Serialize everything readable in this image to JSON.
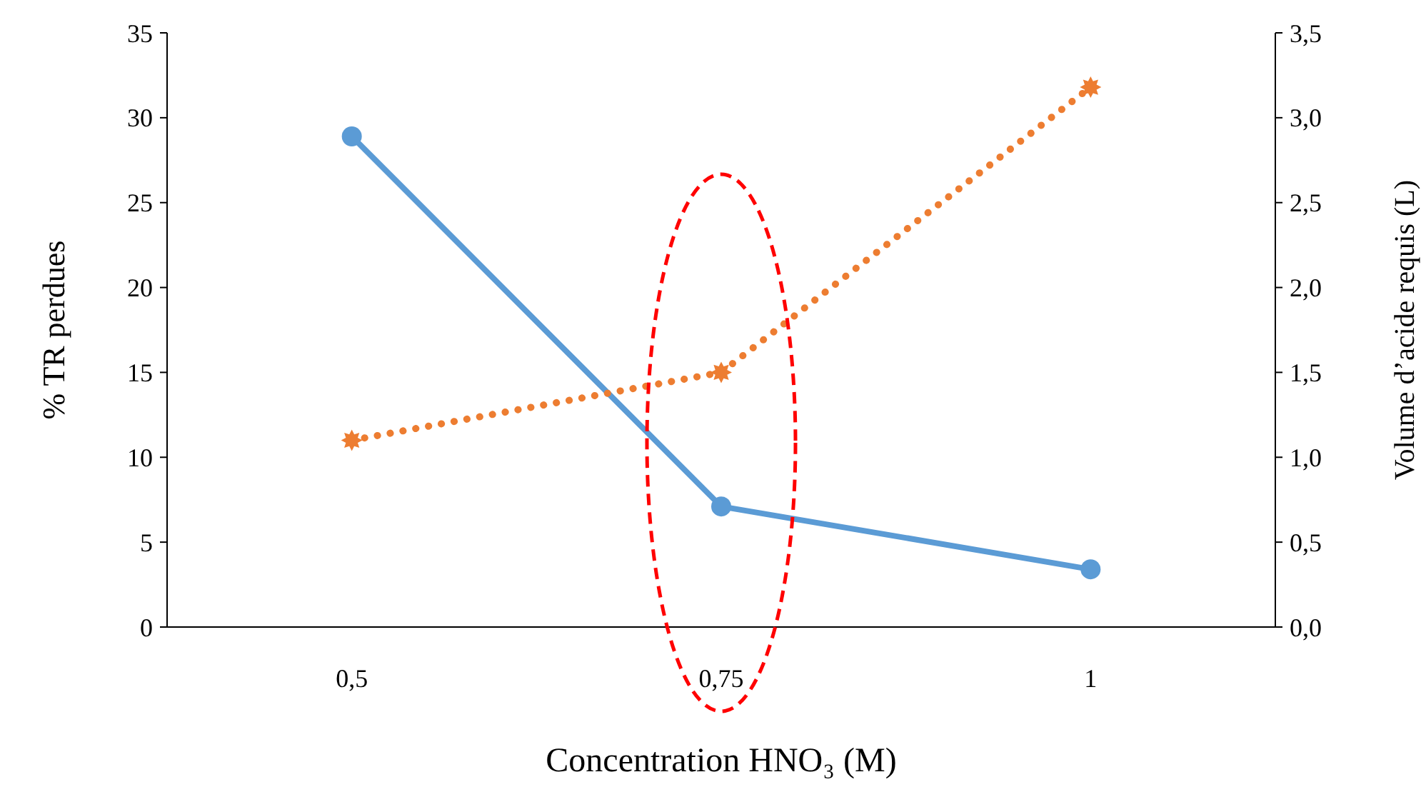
{
  "chart_data": {
    "type": "line",
    "xlabel": "Concentration HNO₃ (M)",
    "ylabel": "% TR perdues",
    "y2label": "Volume d’acide requis (L)",
    "categories": [
      "0,5",
      "0,75",
      "1"
    ],
    "series": [
      {
        "color": "#5b9bd5",
        "values": [
          28.9,
          7.1,
          3.4
        ],
        "marker": "circle",
        "line_style": "solid"
      },
      {
        "color": "#ed7d31",
        "values": [
          1.1,
          1.5,
          3.18
        ],
        "axis": "y2",
        "marker": "star",
        "line_style": "dotted"
      }
    ],
    "ylim": [
      0,
      35
    ],
    "yticks": [
      0,
      5,
      10,
      15,
      20,
      25,
      30,
      35
    ],
    "y2lim": [
      0,
      3.5
    ],
    "y2ticks": [
      {
        "value": 0,
        "label": "0,0"
      },
      {
        "value": 0.5,
        "label": "0,5"
      },
      {
        "value": 1,
        "label": "1,0"
      },
      {
        "value": 1.5,
        "label": "1,5"
      },
      {
        "value": 2,
        "label": "2,0"
      },
      {
        "value": 2.5,
        "label": "2,5"
      },
      {
        "value": 3,
        "label": "3,0"
      },
      {
        "value": 3.5,
        "label": "3,5"
      }
    ],
    "grid": false
  }
}
